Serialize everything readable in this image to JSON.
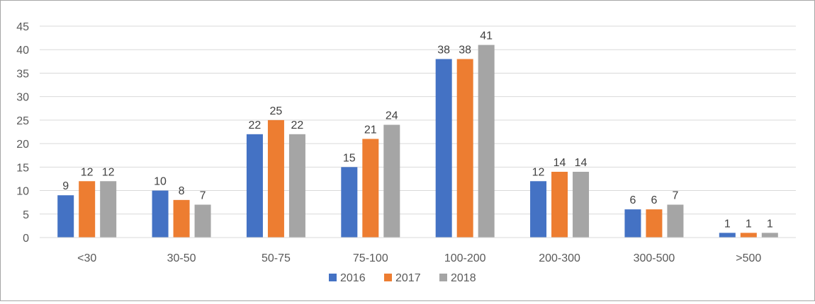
{
  "chart_data": {
    "type": "bar",
    "title": "",
    "xlabel": "",
    "ylabel": "",
    "categories": [
      "<30",
      "30-50",
      "50-75",
      "75-100",
      "100-200",
      "200-300",
      "300-500",
      ">500"
    ],
    "series": [
      {
        "name": "2016",
        "color": "#4472C4",
        "values": [
          9,
          10,
          22,
          15,
          38,
          12,
          6,
          1
        ]
      },
      {
        "name": "2017",
        "color": "#ED7D31",
        "values": [
          12,
          8,
          25,
          21,
          38,
          14,
          6,
          1
        ]
      },
      {
        "name": "2018",
        "color": "#A5A5A5",
        "values": [
          12,
          7,
          22,
          24,
          41,
          14,
          7,
          1
        ]
      }
    ],
    "ylim": [
      0,
      45
    ],
    "yticks": [
      0,
      5,
      10,
      15,
      20,
      25,
      30,
      35,
      40,
      45
    ],
    "grid": true,
    "data_labels": true,
    "legend_position": "bottom"
  }
}
